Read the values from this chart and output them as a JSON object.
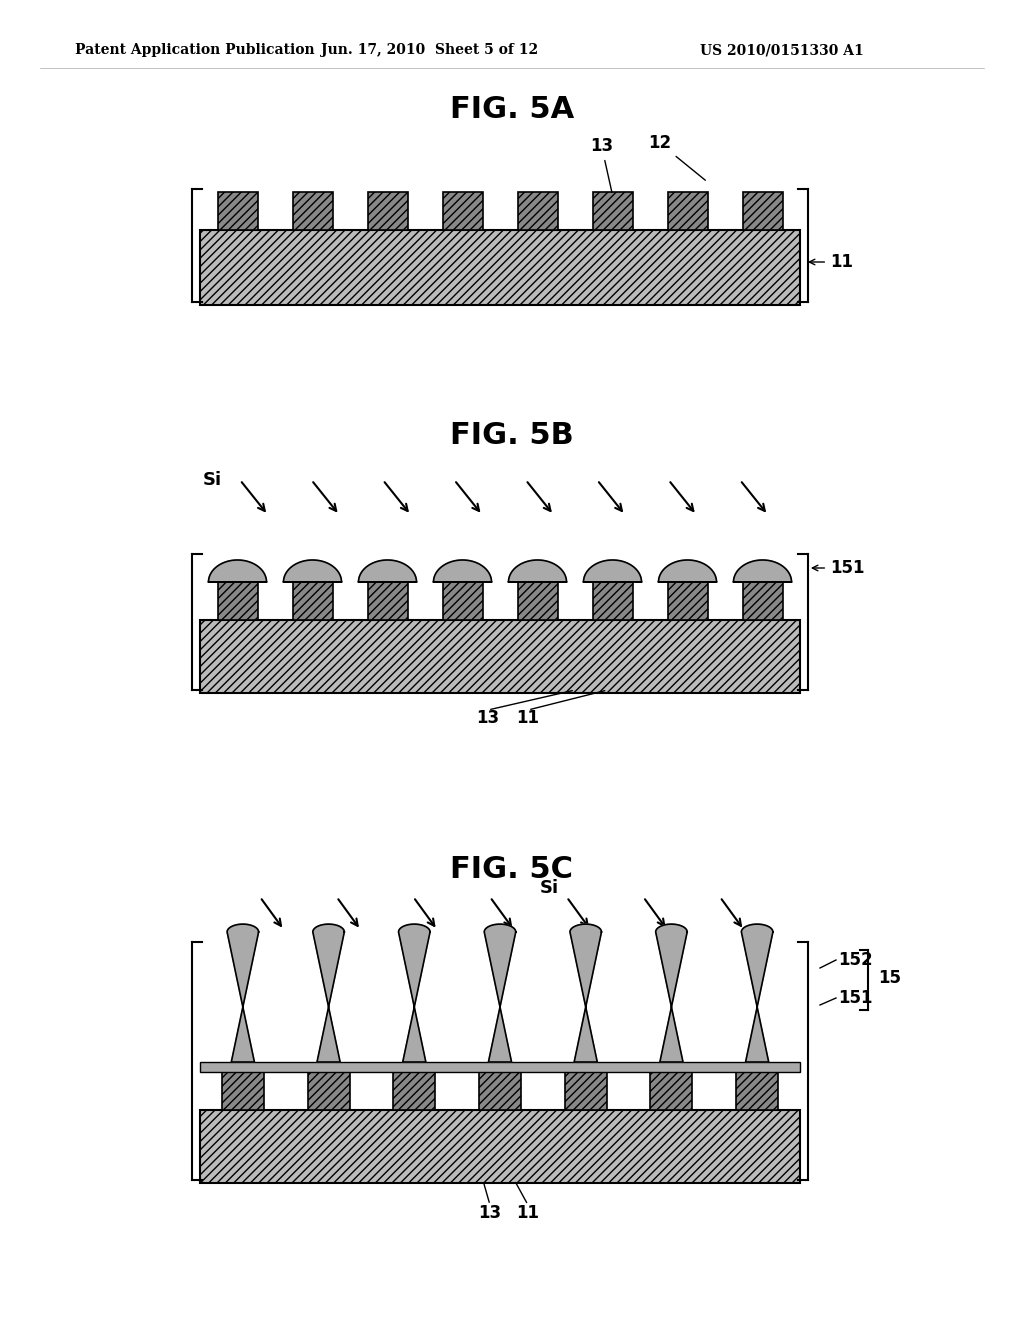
{
  "bg_color": "#ffffff",
  "text_color": "#000000",
  "header_left": "Patent Application Publication",
  "header_center": "Jun. 17, 2010  Sheet 5 of 12",
  "header_right": "US 2010/0151330 A1",
  "fig5a_title": "FIG. 5A",
  "fig5b_title": "FIG. 5B",
  "fig5c_title": "FIG. 5C",
  "base_color": "#bbbbbb",
  "prot_color": "#888888",
  "si_color": "#aaaaaa"
}
